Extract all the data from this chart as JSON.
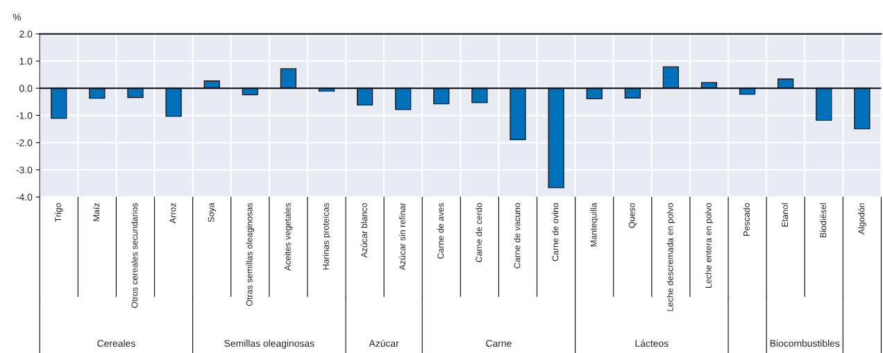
{
  "chart_data": {
    "type": "bar",
    "ylabel": "%",
    "categories": [
      "Trigo",
      "Maíz",
      "Otros cereales secundarios",
      "Arroz",
      "Soya",
      "Otras semillas oleaginosas",
      "Aceites vegetales",
      "Harinas proteicas",
      "Azúcar blanco",
      "Azúcar sin refinar",
      "Carne de aves",
      "Carne de cerdo",
      "Carne de vacuno",
      "Carne de ovino",
      "Mantequilla",
      "Queso",
      "Leche descremada en polvo",
      "Leche entera en polvo",
      "Pescado",
      "Etanol",
      "Biodiésel",
      "Algodón"
    ],
    "values": [
      -1.11,
      -0.37,
      -0.34,
      -1.03,
      0.27,
      -0.24,
      0.72,
      -0.11,
      -0.62,
      -0.78,
      -0.57,
      -0.53,
      -1.89,
      -3.66,
      -0.39,
      -0.36,
      0.79,
      0.21,
      -0.22,
      0.34,
      -1.18,
      -1.49
    ],
    "color": "#0070b8",
    "ylim": [
      -4,
      2
    ],
    "yticks": [
      {
        "value": -4,
        "label": "-4.0"
      },
      {
        "value": -3,
        "label": "-3.0"
      },
      {
        "value": -2,
        "label": "-2.0"
      },
      {
        "value": -1,
        "label": "-1.0"
      },
      {
        "value": 0,
        "label": "0.0"
      },
      {
        "value": 1,
        "label": "1.0"
      },
      {
        "value": 2,
        "label": "2.0"
      }
    ],
    "grid": "y",
    "annotations": [
      "Cereales",
      "Semillas oleaginosas",
      "Azúcar",
      "Carne",
      "Lácteos",
      "Biocombustibles"
    ]
  }
}
